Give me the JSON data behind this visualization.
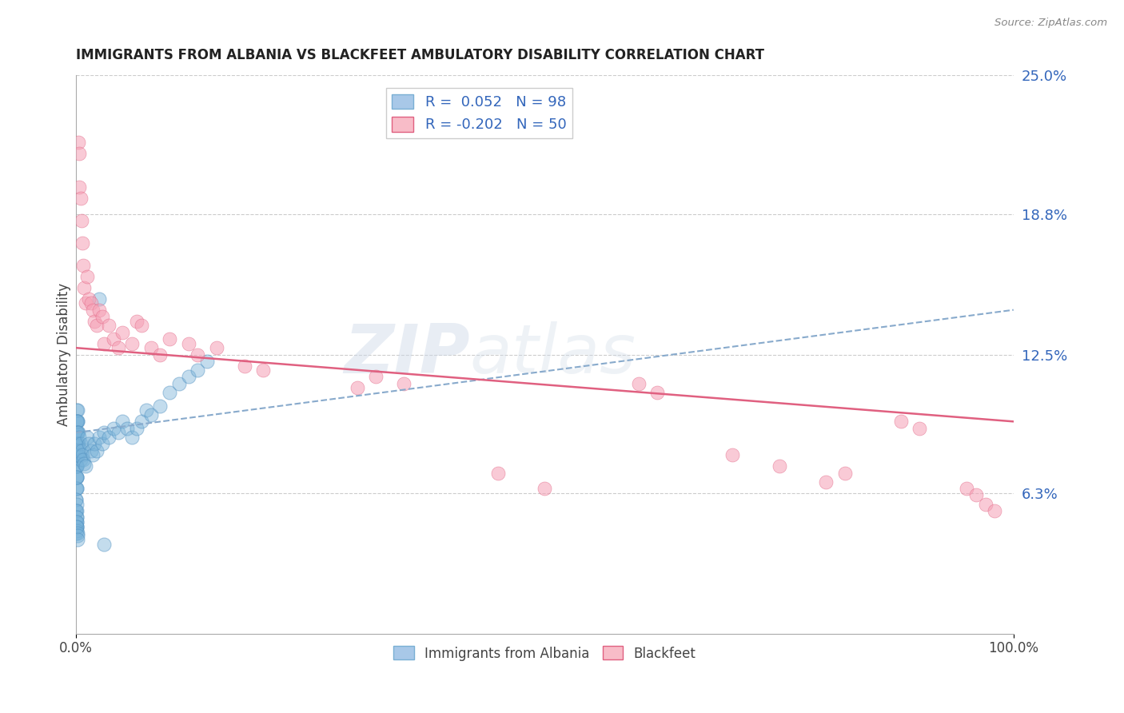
{
  "title": "IMMIGRANTS FROM ALBANIA VS BLACKFEET AMBULATORY DISABILITY CORRELATION CHART",
  "source": "Source: ZipAtlas.com",
  "ylabel": "Ambulatory Disability",
  "xlim": [
    0,
    1.0
  ],
  "ylim": [
    0,
    0.25
  ],
  "yticks": [
    0.063,
    0.125,
    0.188,
    0.25
  ],
  "ytick_labels": [
    "6.3%",
    "12.5%",
    "18.8%",
    "25.0%"
  ],
  "blue_color": "#7ab3d9",
  "blue_edge_color": "#5090c0",
  "pink_color": "#f5a0b5",
  "pink_edge_color": "#e06080",
  "trend_blue_color": "#88aacc",
  "trend_pink_color": "#e06080",
  "watermark_color": "#ccd8e8",
  "background_color": "#ffffff",
  "grid_color": "#cccccc",
  "legend_text_color": "#3366bb",
  "ytick_color": "#3366bb",
  "title_color": "#222222",
  "source_color": "#888888",
  "blue_trend_y0": 0.09,
  "blue_trend_y1": 0.145,
  "pink_trend_y0": 0.128,
  "pink_trend_y1": 0.095,
  "blue_x": [
    0.0005,
    0.0005,
    0.0005,
    0.0005,
    0.0005,
    0.0005,
    0.0005,
    0.0005,
    0.0008,
    0.0008,
    0.0008,
    0.0008,
    0.0008,
    0.0008,
    0.0008,
    0.001,
    0.001,
    0.001,
    0.001,
    0.001,
    0.001,
    0.001,
    0.001,
    0.0012,
    0.0012,
    0.0012,
    0.0012,
    0.0012,
    0.0012,
    0.0015,
    0.0015,
    0.0015,
    0.0015,
    0.0015,
    0.002,
    0.002,
    0.002,
    0.002,
    0.003,
    0.003,
    0.003,
    0.004,
    0.004,
    0.005,
    0.005,
    0.006,
    0.007,
    0.008,
    0.009,
    0.01,
    0.012,
    0.014,
    0.016,
    0.018,
    0.02,
    0.022,
    0.025,
    0.028,
    0.03,
    0.035,
    0.04,
    0.045,
    0.05,
    0.055,
    0.06,
    0.065,
    0.07,
    0.075,
    0.08,
    0.09,
    0.1,
    0.11,
    0.12,
    0.13,
    0.14,
    0.0006,
    0.0006,
    0.0006,
    0.0006,
    0.0006,
    0.0007,
    0.0007,
    0.0007,
    0.0009,
    0.0009,
    0.0011,
    0.0011,
    0.0013,
    0.0013,
    0.0014,
    0.0016,
    0.0017,
    0.0019,
    0.025,
    0.03
  ],
  "blue_y": [
    0.09,
    0.085,
    0.08,
    0.075,
    0.07,
    0.065,
    0.06,
    0.055,
    0.095,
    0.09,
    0.085,
    0.08,
    0.075,
    0.07,
    0.065,
    0.1,
    0.095,
    0.09,
    0.085,
    0.08,
    0.075,
    0.07,
    0.065,
    0.095,
    0.09,
    0.085,
    0.08,
    0.075,
    0.07,
    0.1,
    0.095,
    0.09,
    0.085,
    0.08,
    0.095,
    0.09,
    0.085,
    0.08,
    0.09,
    0.085,
    0.08,
    0.088,
    0.082,
    0.085,
    0.078,
    0.082,
    0.08,
    0.078,
    0.076,
    0.075,
    0.088,
    0.085,
    0.082,
    0.08,
    0.085,
    0.082,
    0.088,
    0.085,
    0.09,
    0.088,
    0.092,
    0.09,
    0.095,
    0.092,
    0.088,
    0.092,
    0.095,
    0.1,
    0.098,
    0.102,
    0.108,
    0.112,
    0.115,
    0.118,
    0.122,
    0.06,
    0.055,
    0.05,
    0.048,
    0.045,
    0.058,
    0.052,
    0.048,
    0.055,
    0.05,
    0.052,
    0.048,
    0.05,
    0.046,
    0.048,
    0.045,
    0.044,
    0.042,
    0.15,
    0.04
  ],
  "pink_x": [
    0.003,
    0.004,
    0.004,
    0.005,
    0.006,
    0.007,
    0.008,
    0.009,
    0.01,
    0.012,
    0.014,
    0.016,
    0.018,
    0.02,
    0.022,
    0.025,
    0.028,
    0.03,
    0.035,
    0.04,
    0.045,
    0.05,
    0.06,
    0.065,
    0.07,
    0.08,
    0.09,
    0.1,
    0.12,
    0.13,
    0.15,
    0.18,
    0.2,
    0.3,
    0.32,
    0.35,
    0.45,
    0.5,
    0.6,
    0.62,
    0.7,
    0.75,
    0.8,
    0.82,
    0.88,
    0.9,
    0.95,
    0.96,
    0.97,
    0.98
  ],
  "pink_y": [
    0.22,
    0.2,
    0.215,
    0.195,
    0.185,
    0.175,
    0.165,
    0.155,
    0.148,
    0.16,
    0.15,
    0.148,
    0.145,
    0.14,
    0.138,
    0.145,
    0.142,
    0.13,
    0.138,
    0.132,
    0.128,
    0.135,
    0.13,
    0.14,
    0.138,
    0.128,
    0.125,
    0.132,
    0.13,
    0.125,
    0.128,
    0.12,
    0.118,
    0.11,
    0.115,
    0.112,
    0.072,
    0.065,
    0.112,
    0.108,
    0.08,
    0.075,
    0.068,
    0.072,
    0.095,
    0.092,
    0.065,
    0.062,
    0.058,
    0.055
  ]
}
